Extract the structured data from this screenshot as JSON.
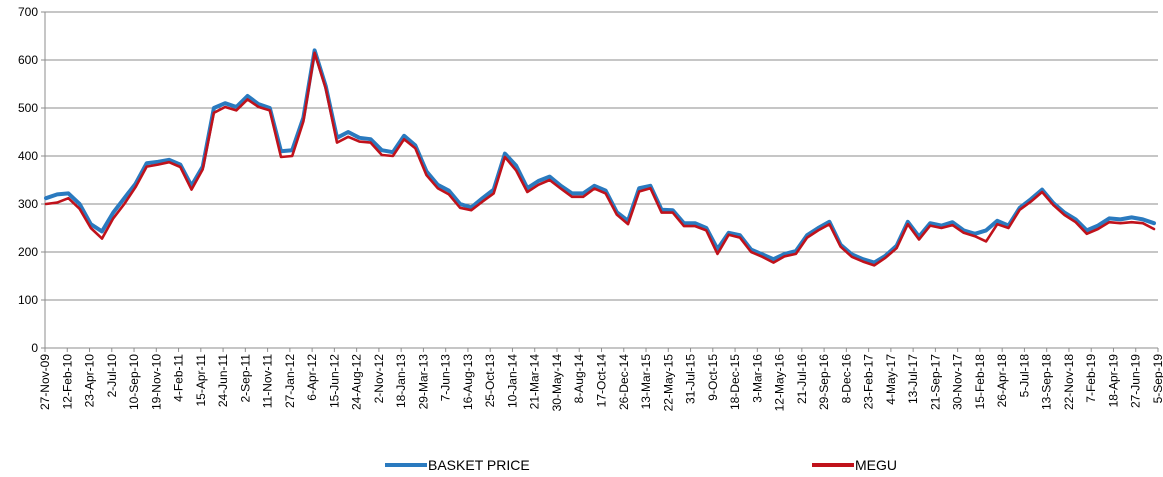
{
  "chart_data": {
    "type": "line",
    "title": "",
    "xlabel": "",
    "ylabel": "",
    "ylim": [
      0,
      700
    ],
    "yticks": [
      0,
      100,
      200,
      300,
      400,
      500,
      600,
      700
    ],
    "grid": "horizontal",
    "legend": "bottom",
    "x_tick_labels": [
      "27-Nov-09",
      "12-Feb-10",
      "23-Apr-10",
      "2-Jul-10",
      "10-Sep-10",
      "19-Nov-10",
      "4-Feb-11",
      "15-Apr-11",
      "24-Jun-11",
      "2-Sep-11",
      "11-Nov-11",
      "27-Jan-12",
      "6-Apr-12",
      "15-Jun-12",
      "24-Aug-12",
      "2-Nov-12",
      "18-Jan-13",
      "29-Mar-13",
      "7-Jun-13",
      "16-Aug-13",
      "25-Oct-13",
      "10-Jan-14",
      "21-Mar-14",
      "30-May-14",
      "8-Aug-14",
      "17-Oct-14",
      "26-Dec-14",
      "13-Mar-15",
      "22-May-15",
      "31-Jul-15",
      "9-Oct-15",
      "18-Dec-15",
      "3-Mar-16",
      "12-May-16",
      "21-Jul-16",
      "29-Sep-16",
      "8-Dec-16",
      "23-Feb-17",
      "4-May-17",
      "13-Jul-17",
      "21-Sep-17",
      "30-Nov-17",
      "15-Feb-18",
      "26-Apr-18",
      "5-Jul-18",
      "13-Sep-18",
      "22-Nov-18",
      "7-Feb-19",
      "18-Apr-19",
      "27-Jun-19",
      "5-Sep-19"
    ],
    "series": [
      {
        "name": "BASKET PRICE",
        "color": "#2a7abf",
        "values": [
          312,
          320,
          322,
          300,
          258,
          243,
          282,
          312,
          342,
          385,
          388,
          392,
          382,
          338,
          378,
          500,
          510,
          502,
          525,
          508,
          500,
          410,
          412,
          480,
          620,
          545,
          438,
          450,
          438,
          435,
          412,
          408,
          442,
          422,
          368,
          340,
          328,
          300,
          293,
          312,
          330,
          405,
          380,
          333,
          348,
          357,
          338,
          322,
          322,
          338,
          328,
          283,
          265,
          333,
          338,
          288,
          287,
          260,
          260,
          250,
          206,
          240,
          235,
          205,
          195,
          185,
          196,
          202,
          235,
          250,
          263,
          215,
          195,
          185,
          178,
          192,
          213,
          263,
          232,
          260,
          255,
          262,
          245,
          238,
          245,
          265,
          255,
          292,
          310,
          330,
          302,
          282,
          268,
          245,
          255,
          270,
          268,
          272,
          268,
          260
        ]
      },
      {
        "name": "MEGU",
        "color": "#c0121b",
        "values": [
          300,
          303,
          312,
          290,
          250,
          228,
          270,
          300,
          335,
          378,
          382,
          387,
          377,
          330,
          372,
          490,
          502,
          495,
          518,
          502,
          495,
          398,
          400,
          472,
          615,
          540,
          428,
          440,
          430,
          428,
          402,
          400,
          435,
          416,
          360,
          333,
          320,
          292,
          287,
          305,
          322,
          398,
          370,
          325,
          340,
          350,
          332,
          315,
          315,
          332,
          322,
          278,
          258,
          326,
          333,
          282,
          282,
          254,
          254,
          245,
          196,
          236,
          230,
          200,
          190,
          178,
          191,
          196,
          230,
          245,
          258,
          211,
          190,
          180,
          172,
          188,
          208,
          258,
          226,
          255,
          250,
          256,
          240,
          233,
          222,
          258,
          250,
          288,
          305,
          325,
          298,
          277,
          262,
          238,
          248,
          262,
          260,
          262,
          260,
          248
        ]
      }
    ]
  }
}
